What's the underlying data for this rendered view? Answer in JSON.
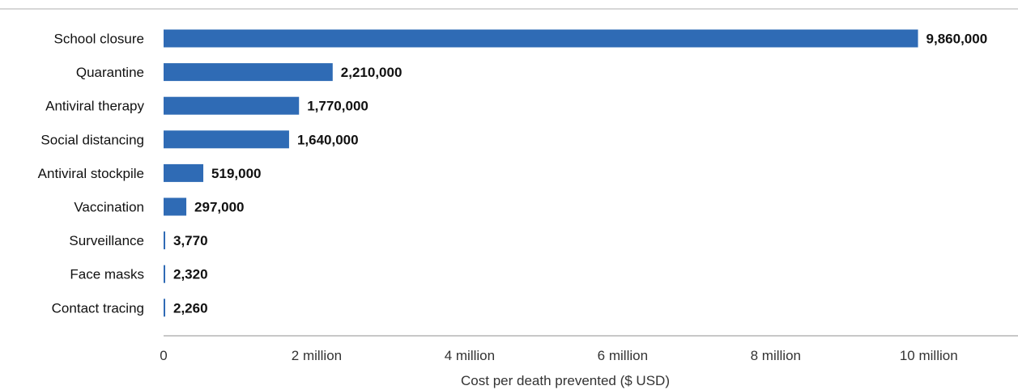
{
  "chart_data": {
    "type": "bar",
    "orientation": "horizontal",
    "categories": [
      "School closure",
      "Quarantine",
      "Antiviral therapy",
      "Social distancing",
      "Antiviral stockpile",
      "Vaccination",
      "Surveillance",
      "Face masks",
      "Contact tracing"
    ],
    "values": [
      9860000,
      2210000,
      1770000,
      1640000,
      519000,
      297000,
      3770,
      2320,
      2260
    ],
    "value_labels": [
      "9,860,000",
      "2,210,000",
      "1,770,000",
      "1,640,000",
      "519,000",
      "297,000",
      "3,770",
      "2,320",
      "2,260"
    ],
    "xticks": [
      0,
      2000000,
      4000000,
      6000000,
      8000000,
      10000000
    ],
    "xtick_labels": [
      "0",
      "2 million",
      "4 million",
      "6 million",
      "8 million",
      "10 million"
    ],
    "xlabel": "Cost per death prevented ($ USD)",
    "xlim": [
      0,
      10500000
    ],
    "grid": false,
    "bar_color": "#2f6bb5",
    "axis_color": "#c8c8c8"
  }
}
